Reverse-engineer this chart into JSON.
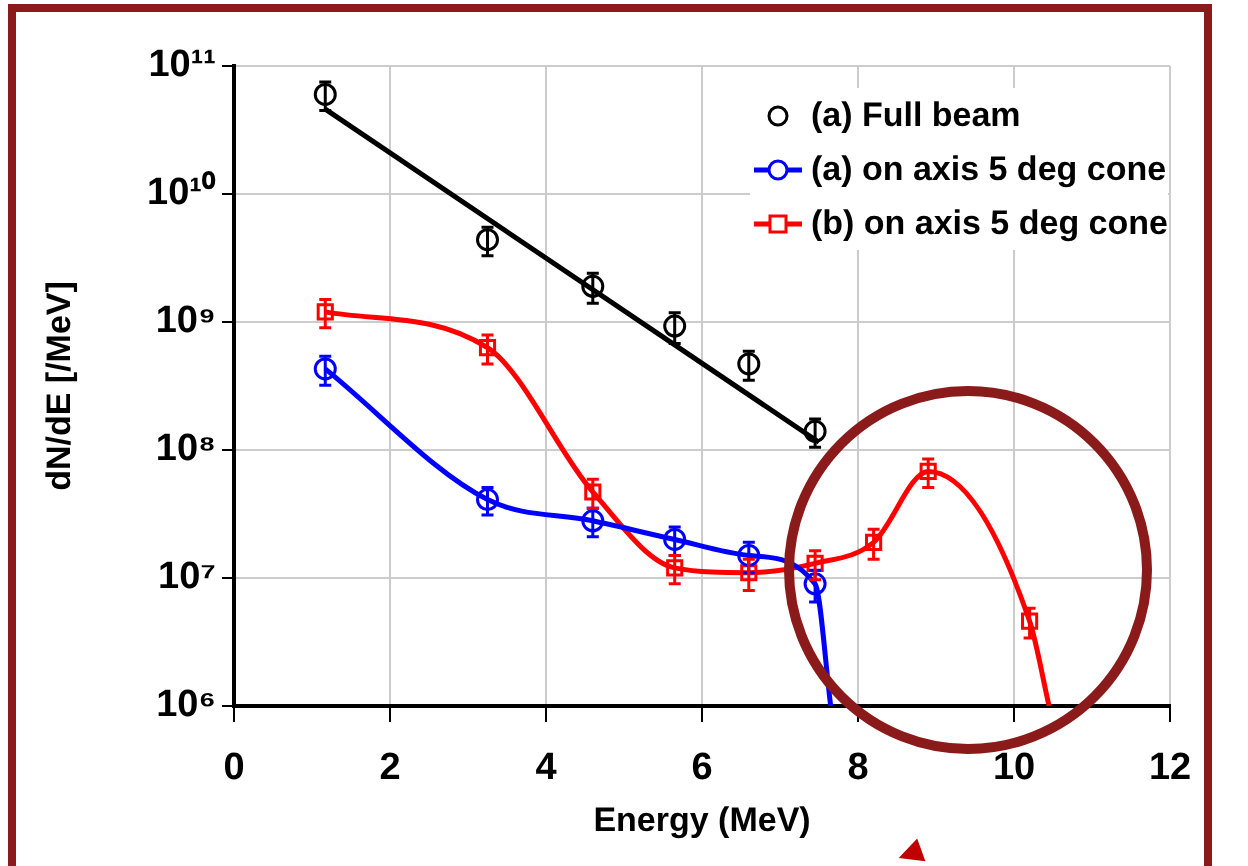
{
  "chart_data": {
    "type": "scatter",
    "xlabel": "Energy (MeV)",
    "ylabel": "dN/dE [/MeV]",
    "log": "y",
    "xlim": [
      0,
      12
    ],
    "xticks": [
      0,
      2,
      4,
      6,
      8,
      10,
      12
    ],
    "ylim": [
      1000000,
      100000000000
    ],
    "yticks": [
      {
        "value": 1000000,
        "label": "10⁶"
      },
      {
        "value": 10000000,
        "label": "10⁷"
      },
      {
        "value": 100000000,
        "label": "10⁸"
      },
      {
        "value": 1000000000,
        "label": "10⁹"
      },
      {
        "value": 10000000000,
        "label": "10¹⁰"
      },
      {
        "value": 100000000000,
        "label": "10¹¹"
      }
    ],
    "grid": true,
    "legend": "top right",
    "marker": "circle",
    "series": [
      {
        "name": "(a) Full beam",
        "color": "#000000",
        "x": [
          1.17,
          3.25,
          4.6,
          5.65,
          6.6,
          7.45
        ],
        "values": [
          60000000000,
          4400000000,
          1900000000,
          930000000,
          470000000,
          140000000
        ],
        "errors": [
          15000000000,
          1100000000,
          500000000,
          250000000,
          120000000,
          35000000
        ]
      },
      {
        "type": "line",
        "color": "#000000",
        "marker": "none",
        "x": [
          1.17,
          7.5
        ],
        "values": [
          46000000000,
          115000000
        ]
      },
      {
        "name": "(a) on axis 5 deg cone",
        "type": "line",
        "color": "#0000ff",
        "marker": "circle",
        "x": [
          1.17,
          3.25,
          4.6,
          5.65,
          6.6,
          7.45,
          7.65
        ],
        "values": [
          430000000,
          41000000,
          28000000,
          20000000,
          15000000,
          9000000,
          1000000
        ],
        "errors": [
          110000000,
          10000000,
          7000000,
          5000000,
          4000000,
          2500000,
          null
        ]
      },
      {
        "name": "(b) on axis 5 deg cone",
        "type": "line",
        "color": "#ff0000",
        "marker": "square",
        "x": [
          1.17,
          3.25,
          4.6,
          5.65,
          6.6,
          7.45,
          8.2,
          8.9,
          10.2,
          10.45
        ],
        "values": [
          1200000000,
          630000000,
          47000000,
          12000000,
          11000000,
          13000000,
          19000000,
          68000000,
          4600000,
          1000000
        ],
        "errors": [
          300000000,
          160000000,
          12000000,
          3000000,
          3000000,
          3300000,
          5000000,
          17000000,
          1200000,
          null
        ]
      }
    ]
  }
}
